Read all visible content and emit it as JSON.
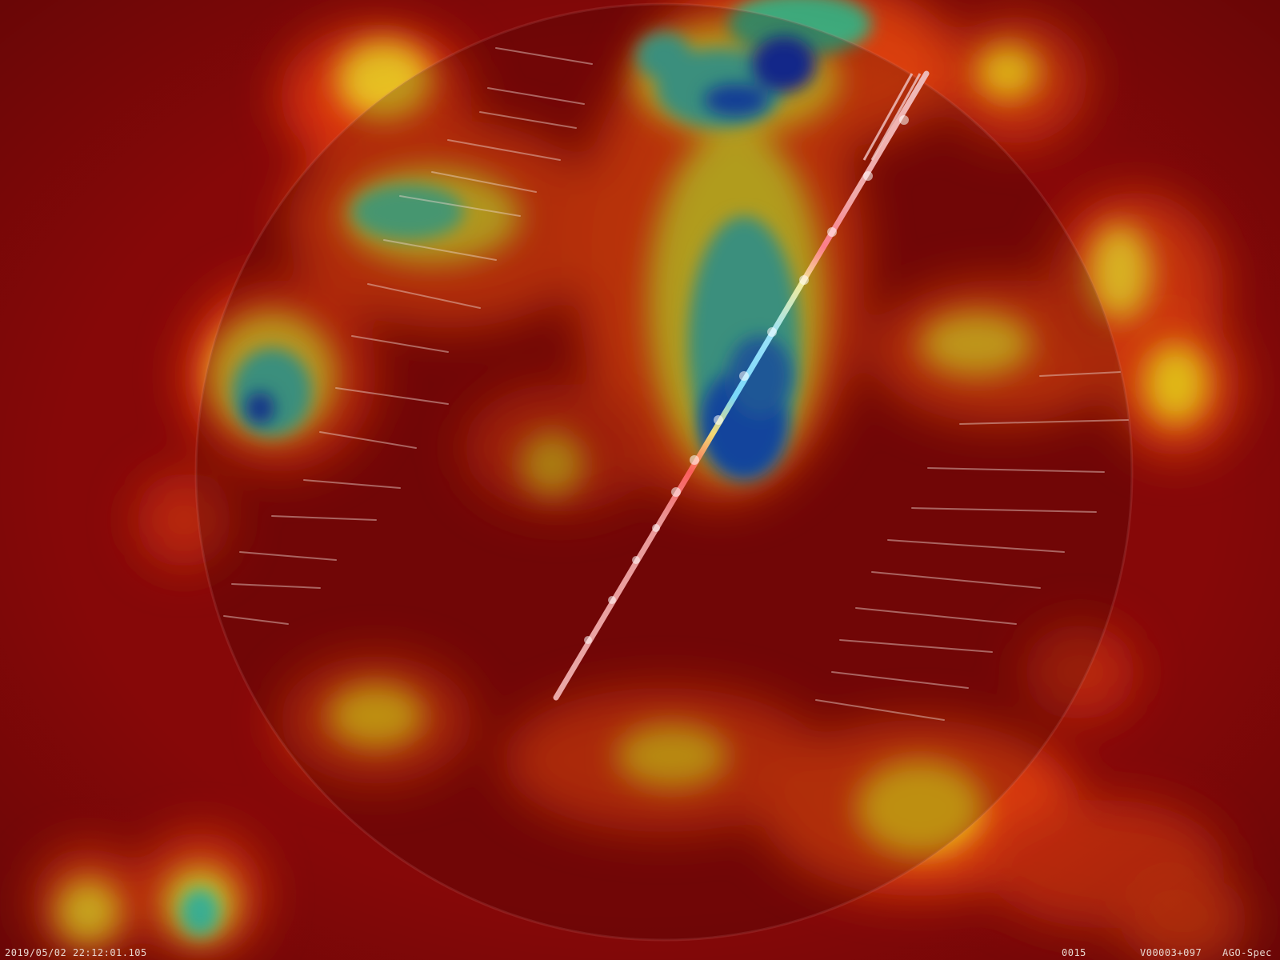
{
  "overlay": {
    "timestamp": "2019/05/02 22:12:01.105",
    "frame_number": "0015",
    "station_code": "V00003+097",
    "camera_name": "AGO-Spec"
  },
  "colors": {
    "heat_low": "#8a0a0a",
    "heat_mid": "#e03a10",
    "heat_warm": "#f0c020",
    "heat_cool": "#40c090",
    "heat_cold": "#1050c8",
    "meteor_trail": "#f4c8c8"
  }
}
